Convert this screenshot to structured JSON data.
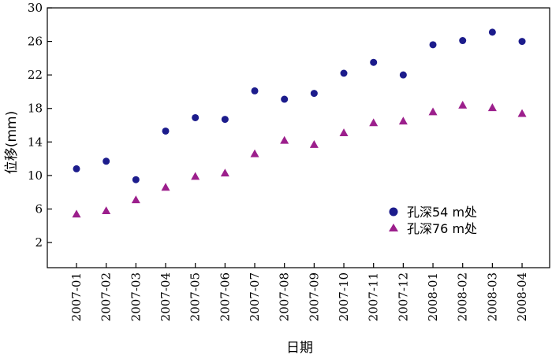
{
  "chart_data": {
    "type": "scatter",
    "xlabel": "日期",
    "ylabel": "位移(mm)",
    "categories": [
      "2007-01",
      "2007-02",
      "2007-03",
      "2007-04",
      "2007-05",
      "2007-06",
      "2007-07",
      "2007-08",
      "2007-09",
      "2007-10",
      "2007-11",
      "2007-12",
      "2008-01",
      "2008-02",
      "2008-03",
      "2008-04"
    ],
    "yticks": [
      2,
      6,
      10,
      14,
      18,
      22,
      26,
      30
    ],
    "ylim": [
      -1,
      30
    ],
    "grid": false,
    "legend_position": "center-right",
    "series": [
      {
        "name": "孔深54 m处",
        "marker": "circle",
        "color": "#1c1c8c",
        "values": [
          10.8,
          11.7,
          9.5,
          15.3,
          16.9,
          16.7,
          20.1,
          19.1,
          19.8,
          22.2,
          23.5,
          22.0,
          25.6,
          26.1,
          27.1,
          26.0
        ]
      },
      {
        "name": "孔深76 m处",
        "marker": "triangle",
        "color": "#9c1f8c",
        "values": [
          5.4,
          5.8,
          7.1,
          8.6,
          9.9,
          10.3,
          12.6,
          14.2,
          13.7,
          15.1,
          16.3,
          16.5,
          17.6,
          18.4,
          18.1,
          17.4
        ]
      }
    ]
  }
}
